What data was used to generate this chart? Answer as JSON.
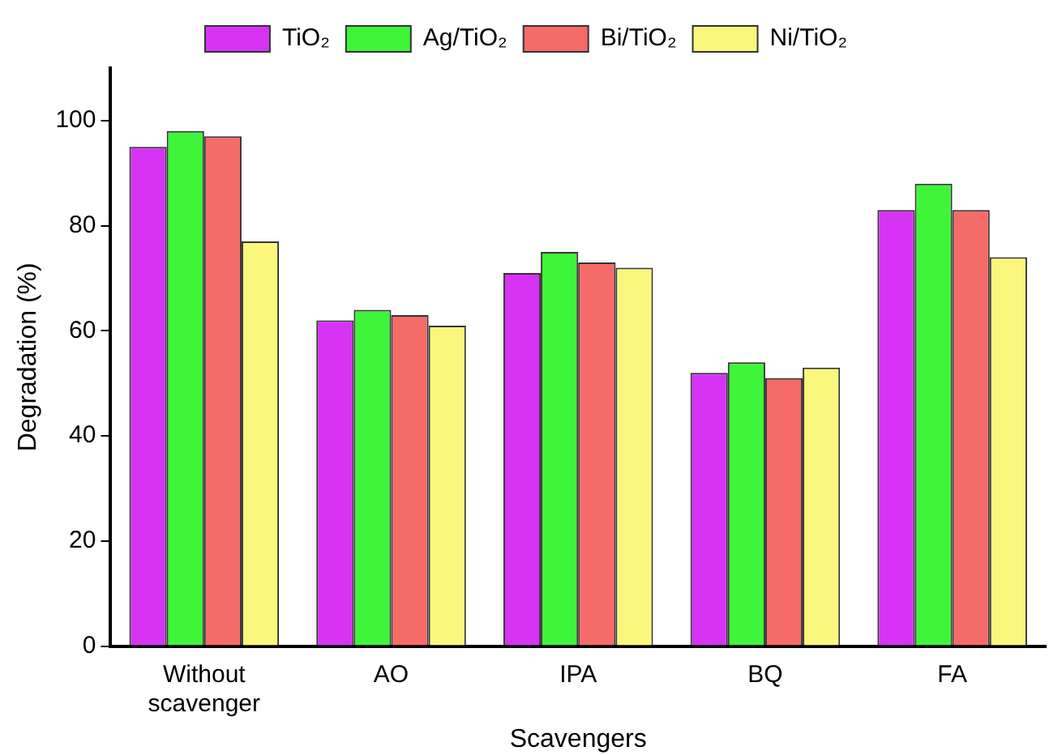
{
  "chart_data": {
    "type": "bar",
    "xlabel": "Scavengers",
    "ylabel": "Degradation (%)",
    "categories": [
      "Without scavenger",
      "AO",
      "IPA",
      "BQ",
      "FA"
    ],
    "series": [
      {
        "name": "TiO₂",
        "color": "#d633f5",
        "values": [
          95,
          62,
          71,
          52,
          83
        ]
      },
      {
        "name": "Ag/TiO₂",
        "color": "#3ef53a",
        "values": [
          98,
          64,
          75,
          54,
          88
        ]
      },
      {
        "name": "Bi/TiO₂",
        "color": "#f56b67",
        "values": [
          97,
          63,
          73,
          51,
          83
        ]
      },
      {
        "name": "Ni/TiO₂",
        "color": "#fbf77c",
        "values": [
          77,
          61,
          72,
          53,
          74
        ]
      }
    ],
    "ylim": [
      0,
      110
    ],
    "yticks": [
      0,
      20,
      40,
      60,
      80,
      100
    ],
    "grid": false,
    "legend": "top"
  }
}
